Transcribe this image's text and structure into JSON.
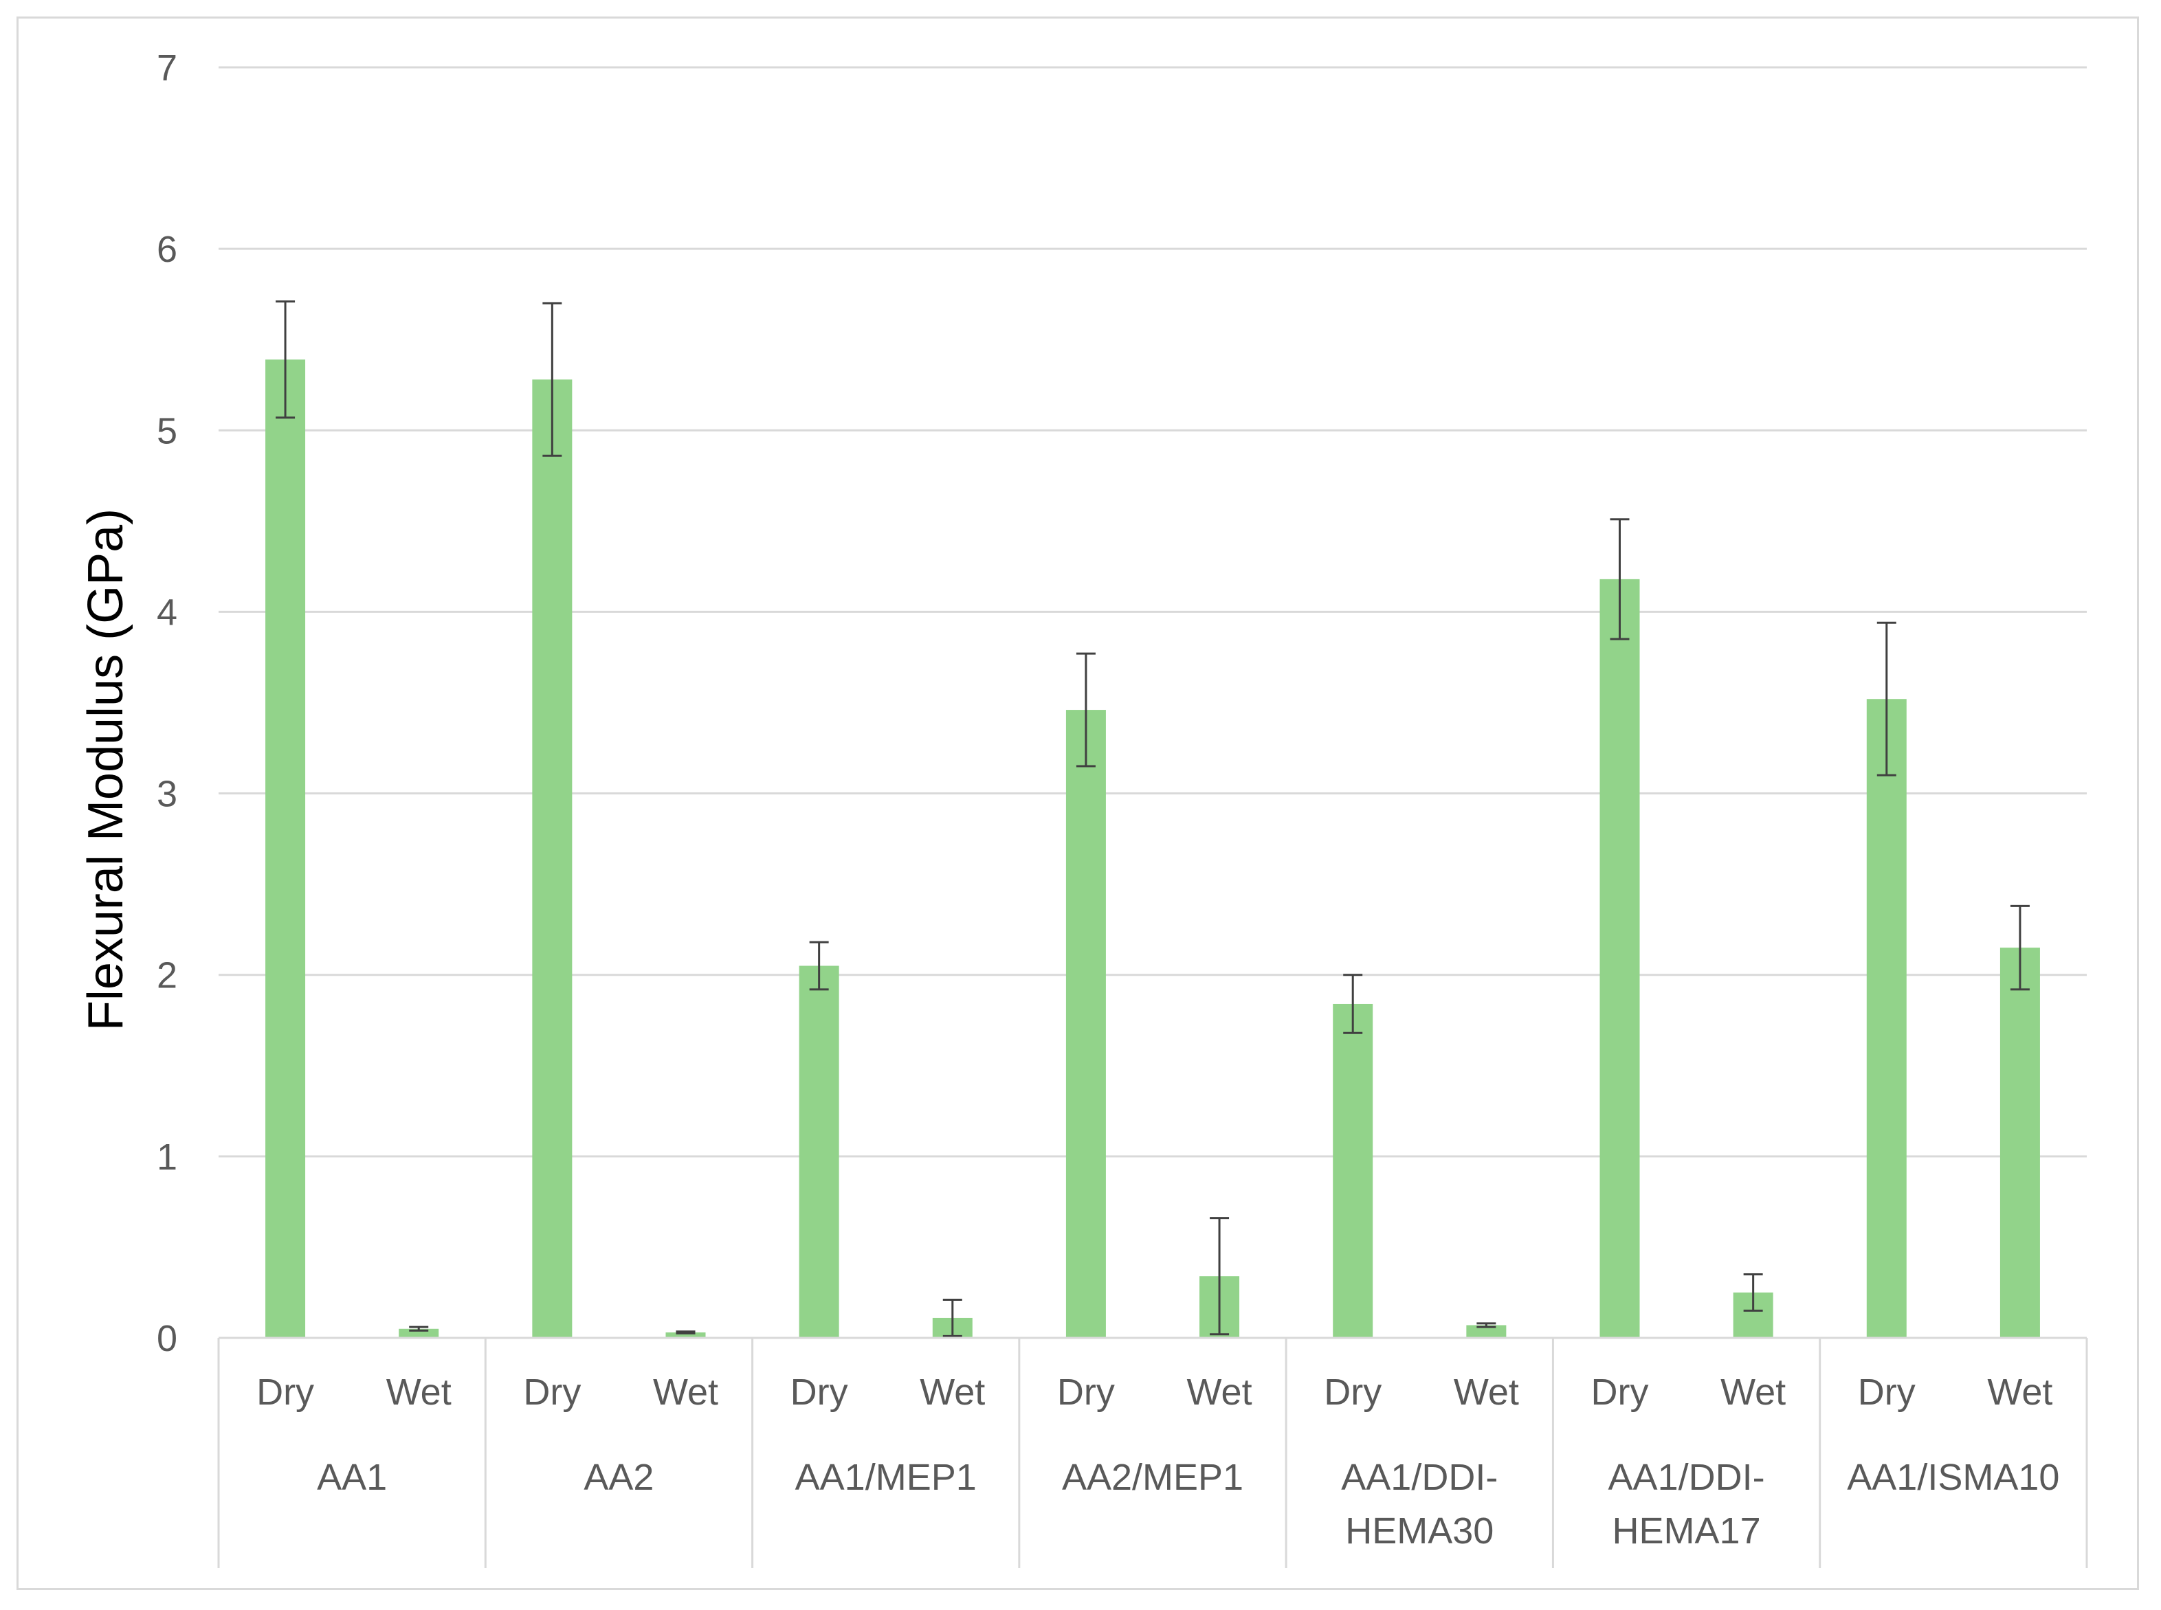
{
  "chart_data": {
    "type": "bar",
    "title": "",
    "xlabel": "",
    "ylabel": "Flexural Modulus (GPa)",
    "ylim": [
      0,
      7
    ],
    "yticks": [
      0,
      1,
      2,
      3,
      4,
      5,
      6,
      7
    ],
    "grid": true,
    "legend": "none",
    "bar_color": "#92d38a",
    "error_bar_color": "#404040",
    "groups": [
      {
        "label_lines": [
          "AA1"
        ],
        "subcategories": [
          "Dry",
          "Wet"
        ],
        "values": [
          5.39,
          0.05
        ],
        "errors": [
          0.32,
          0.01
        ]
      },
      {
        "label_lines": [
          "AA2"
        ],
        "subcategories": [
          "Dry",
          "Wet"
        ],
        "values": [
          5.28,
          0.03
        ],
        "errors": [
          0.42,
          0.005
        ]
      },
      {
        "label_lines": [
          "AA1/MEP1"
        ],
        "subcategories": [
          "Dry",
          "Wet"
        ],
        "values": [
          2.05,
          0.11
        ],
        "errors": [
          0.13,
          0.1
        ]
      },
      {
        "label_lines": [
          "AA2/MEP1"
        ],
        "subcategories": [
          "Dry",
          "Wet"
        ],
        "values": [
          3.46,
          0.34
        ],
        "errors": [
          0.31,
          0.32
        ]
      },
      {
        "label_lines": [
          "AA1/DDI-",
          "HEMA30"
        ],
        "subcategories": [
          "Dry",
          "Wet"
        ],
        "values": [
          1.84,
          0.07
        ],
        "errors": [
          0.16,
          0.01
        ]
      },
      {
        "label_lines": [
          "AA1/DDI-",
          "HEMA17"
        ],
        "subcategories": [
          "Dry",
          "Wet"
        ],
        "values": [
          4.18,
          0.25
        ],
        "errors": [
          0.33,
          0.1
        ]
      },
      {
        "label_lines": [
          "AA1/ISMA10"
        ],
        "subcategories": [
          "Dry",
          "Wet"
        ],
        "values": [
          3.52,
          2.15
        ],
        "errors": [
          0.42,
          0.23
        ]
      }
    ]
  }
}
